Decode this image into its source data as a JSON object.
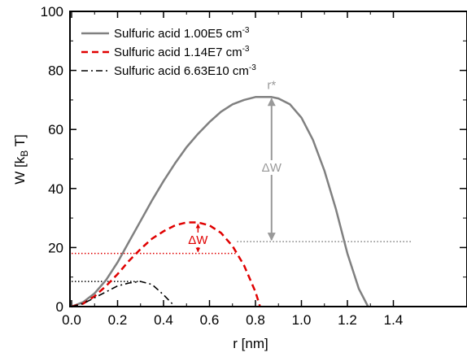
{
  "chart_data": {
    "type": "line",
    "xlabel": "r [nm]",
    "ylabel": "W [kB T]",
    "ylabel_parts": {
      "main": "W [k",
      "sub": "B",
      "end": " T]"
    },
    "xlim": [
      0.0,
      1.48
    ],
    "ylim": [
      0,
      100
    ],
    "x_ticks": [
      "0.0",
      "0.2",
      "0.4",
      "0.6",
      "0.8",
      "1.0",
      "1.2",
      "1.4"
    ],
    "y_ticks": [
      "0",
      "20",
      "40",
      "60",
      "80",
      "100"
    ],
    "grid": false,
    "legend_position": "top-left",
    "legend": [
      {
        "text": "Sulfuric acid 1.00E5 cm",
        "sup": "-3"
      },
      {
        "text": "Sulfuric acid 1.14E7 cm",
        "sup": "-3"
      },
      {
        "text": "Sulfuric acid 6.63E10 cm",
        "sup": "-3"
      }
    ],
    "series": [
      {
        "color": "#808080",
        "style": "solid",
        "x": [
          0.0,
          0.05,
          0.1,
          0.15,
          0.2,
          0.25,
          0.3,
          0.35,
          0.4,
          0.45,
          0.5,
          0.55,
          0.6,
          0.65,
          0.7,
          0.75,
          0.8,
          0.85,
          0.87,
          0.9,
          0.95,
          1.0,
          1.05,
          1.1,
          1.15,
          1.2,
          1.25,
          1.29
        ],
        "y": [
          0,
          1.5,
          4.5,
          9,
          15,
          22,
          29,
          36,
          42.5,
          48.5,
          54,
          58.5,
          62.5,
          66,
          68.5,
          70,
          71,
          71,
          71,
          70.5,
          68.5,
          64,
          56.5,
          46,
          33,
          18,
          6,
          0
        ]
      },
      {
        "color": "#e00000",
        "style": "dashed",
        "x": [
          0.0,
          0.05,
          0.1,
          0.15,
          0.2,
          0.25,
          0.3,
          0.35,
          0.4,
          0.45,
          0.5,
          0.55,
          0.6,
          0.65,
          0.7,
          0.75,
          0.8,
          0.82
        ],
        "y": [
          0,
          1,
          3.5,
          7,
          11,
          15.5,
          19.5,
          23,
          25.5,
          27.5,
          28.5,
          28.5,
          27.5,
          25,
          20.5,
          14,
          5,
          0
        ]
      },
      {
        "color": "#000000",
        "style": "dashdot",
        "x": [
          0.0,
          0.05,
          0.1,
          0.15,
          0.2,
          0.25,
          0.3,
          0.35,
          0.4,
          0.45
        ],
        "y": [
          0,
          1,
          3,
          5,
          7,
          8,
          8.5,
          7.5,
          4,
          0
        ]
      }
    ],
    "reference_lines": [
      {
        "color": "#808080",
        "style": "dotted",
        "y": 22,
        "x0": 0.72,
        "x1": 1.48
      },
      {
        "color": "#e00000",
        "style": "dotted",
        "y": 18,
        "x0": 0.0,
        "x1": 0.72
      },
      {
        "color": "#000000",
        "style": "dotted",
        "y": 8.5,
        "x0": 0.0,
        "x1": 0.3
      }
    ],
    "annotations": [
      {
        "text": "r*",
        "color": "#999999",
        "x": 0.87,
        "y": 74
      },
      {
        "text": "ΔW",
        "color": "#999999",
        "x": 0.87,
        "y": 46
      },
      {
        "text": "ΔW",
        "color": "#e00000",
        "x": 0.55,
        "y": 21.5
      }
    ],
    "arrows": [
      {
        "color": "#999999",
        "x": 0.87,
        "y0": 71,
        "y1": 22
      },
      {
        "color": "#e00000",
        "x": 0.55,
        "y0": 28.5,
        "y1": 18
      }
    ]
  }
}
